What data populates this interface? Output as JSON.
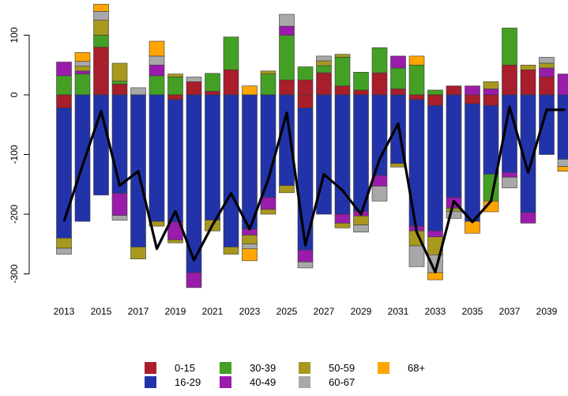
{
  "chart_data": {
    "type": "bar",
    "subtype": "stacked-diverging-bar-with-line",
    "title": "",
    "xlabel": "",
    "ylabel": "",
    "ylim": [
      -330,
      140
    ],
    "y_ticks": [
      100,
      0,
      -100,
      -200,
      -300
    ],
    "y_tick_labels": [
      "100",
      "0",
      "-100",
      "-200",
      "-300"
    ],
    "x_tick_labels": [
      "2013",
      "2015",
      "2017",
      "2019",
      "2021",
      "2023",
      "2025",
      "2027",
      "2029",
      "2031",
      "2033",
      "2035",
      "2037",
      "2039"
    ],
    "categories": [
      2013,
      2014,
      2015,
      2016,
      2017,
      2018,
      2019,
      2020,
      2021,
      2022,
      2023,
      2024,
      2025,
      2026,
      2027,
      2028,
      2029,
      2030,
      2031,
      2032,
      2033,
      2034,
      2035,
      2036,
      2037,
      2038,
      2039,
      2040
    ],
    "legend_position": "bottom",
    "grid": false,
    "series": [
      {
        "name": "0-15",
        "color": "#A81E2A",
        "positive": [
          0,
          0,
          80,
          18,
          0,
          0,
          0,
          22,
          6,
          42,
          0,
          0,
          25,
          25,
          37,
          15,
          8,
          37,
          10,
          0,
          0,
          15,
          0,
          0,
          50,
          42,
          30,
          0
        ],
        "negative": [
          22,
          0,
          0,
          0,
          0,
          0,
          8,
          0,
          0,
          0,
          0,
          0,
          0,
          22,
          0,
          0,
          0,
          0,
          0,
          8,
          18,
          0,
          15,
          18,
          0,
          0,
          0,
          0
        ]
      },
      {
        "name": "16-29",
        "color": "#2233AA",
        "positive": [
          0,
          0,
          0,
          0,
          0,
          0,
          0,
          0,
          0,
          0,
          0,
          0,
          0,
          0,
          0,
          0,
          0,
          0,
          0,
          0,
          0,
          0,
          0,
          0,
          0,
          0,
          0,
          0
        ],
        "negative": [
          218,
          212,
          168,
          165,
          255,
          212,
          205,
          298,
          210,
          255,
          225,
          172,
          152,
          238,
          200,
          200,
          195,
          135,
          115,
          212,
          210,
          172,
          197,
          115,
          130,
          197,
          100,
          108
        ]
      },
      {
        "name": "30-39",
        "color": "#44A024",
        "positive": [
          32,
          35,
          20,
          5,
          0,
          32,
          30,
          0,
          30,
          55,
          0,
          35,
          75,
          22,
          12,
          48,
          30,
          42,
          35,
          50,
          8,
          0,
          0,
          0,
          62,
          0,
          0,
          0
        ],
        "negative": [
          0,
          0,
          0,
          0,
          0,
          0,
          0,
          0,
          0,
          0,
          0,
          0,
          0,
          0,
          0,
          0,
          0,
          0,
          0,
          0,
          0,
          0,
          0,
          45,
          0,
          0,
          0,
          0
        ]
      },
      {
        "name": "40-49",
        "color": "#9A1CAA",
        "positive": [
          23,
          5,
          0,
          0,
          0,
          18,
          0,
          0,
          0,
          0,
          0,
          0,
          15,
          0,
          0,
          0,
          0,
          0,
          20,
          0,
          0,
          0,
          15,
          10,
          0,
          0,
          15,
          35
        ],
        "negative": [
          0,
          0,
          0,
          37,
          0,
          0,
          30,
          25,
          0,
          0,
          10,
          20,
          0,
          20,
          0,
          15,
          8,
          18,
          0,
          8,
          10,
          18,
          0,
          0,
          8,
          18,
          0,
          0
        ]
      },
      {
        "name": "50-59",
        "color": "#A8981E",
        "positive": [
          0,
          8,
          25,
          30,
          0,
          0,
          5,
          0,
          0,
          0,
          0,
          5,
          0,
          0,
          8,
          5,
          0,
          0,
          0,
          0,
          0,
          0,
          0,
          12,
          0,
          8,
          8,
          0
        ],
        "negative": [
          17,
          0,
          0,
          0,
          20,
          8,
          5,
          0,
          18,
          12,
          15,
          8,
          12,
          0,
          0,
          8,
          15,
          0,
          6,
          25,
          30,
          5,
          0,
          0,
          0,
          0,
          0,
          0
        ]
      },
      {
        "name": "60-67",
        "color": "#A8A8A8",
        "positive": [
          0,
          8,
          15,
          0,
          12,
          15,
          0,
          8,
          0,
          0,
          0,
          0,
          20,
          0,
          8,
          0,
          0,
          0,
          0,
          0,
          0,
          0,
          0,
          0,
          0,
          0,
          10,
          0
        ],
        "negative": [
          10,
          0,
          0,
          8,
          0,
          0,
          0,
          0,
          0,
          0,
          8,
          0,
          0,
          10,
          0,
          0,
          12,
          25,
          0,
          35,
          30,
          12,
          0,
          0,
          18,
          0,
          0,
          12
        ]
      },
      {
        "name": "68+",
        "color": "#FFA500",
        "positive": [
          0,
          15,
          12,
          0,
          0,
          25,
          0,
          0,
          0,
          0,
          15,
          0,
          0,
          0,
          0,
          0,
          0,
          0,
          0,
          15,
          0,
          0,
          0,
          0,
          0,
          0,
          0,
          0
        ],
        "negative": [
          0,
          0,
          0,
          0,
          0,
          0,
          0,
          0,
          0,
          0,
          20,
          0,
          0,
          0,
          0,
          0,
          0,
          0,
          0,
          0,
          12,
          0,
          20,
          18,
          0,
          0,
          0,
          8
        ]
      }
    ],
    "line": {
      "name": "",
      "color": "#000000",
      "values": [
        -212,
        -118,
        -27,
        -152,
        -128,
        -258,
        -195,
        -277,
        -218,
        -165,
        -225,
        -142,
        -30,
        -252,
        -133,
        -160,
        -200,
        -108,
        -48,
        -230,
        -297,
        -178,
        -213,
        -178,
        -20,
        -130,
        -25,
        -25
      ]
    },
    "legend_rows": [
      [
        "0-15",
        "30-39",
        "50-59",
        "68+"
      ],
      [
        "16-29",
        "40-49",
        "60-67"
      ]
    ]
  }
}
